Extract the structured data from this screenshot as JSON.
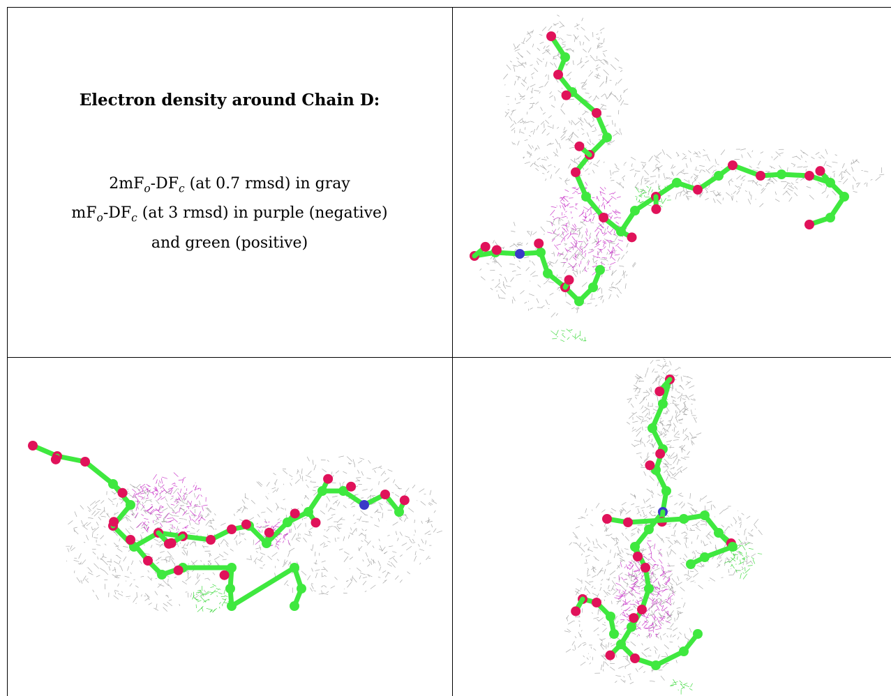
{
  "caption": {
    "title": "Electron density around Chain D:",
    "line1": {
      "prefix": "2mF",
      "sub1": "o",
      "mid": "-DF",
      "sub2": "c",
      "suffix": " (at 0.7 rmsd) in gray"
    },
    "line2": {
      "prefix": "mF",
      "sub1": "o",
      "mid": "-DF",
      "sub2": "c",
      "suffix": " (at 3 rmsd) in purple (negative)"
    },
    "line3": "and green (positive)"
  },
  "colors": {
    "carbon": "#3fe83f",
    "oxygen": "#e0125a",
    "nitrogen": "#3a3ac8",
    "mesh_2fofc": "#9a9a9a",
    "mesh_negative": "#c21ec2",
    "mesh_positive": "#22d422"
  },
  "panels": [
    {
      "name": "view-1",
      "content": "molecular-model-with-density-mesh"
    },
    {
      "name": "view-2",
      "content": "molecular-model-with-density-mesh"
    },
    {
      "name": "view-3",
      "content": "molecular-model-with-density-mesh"
    }
  ]
}
